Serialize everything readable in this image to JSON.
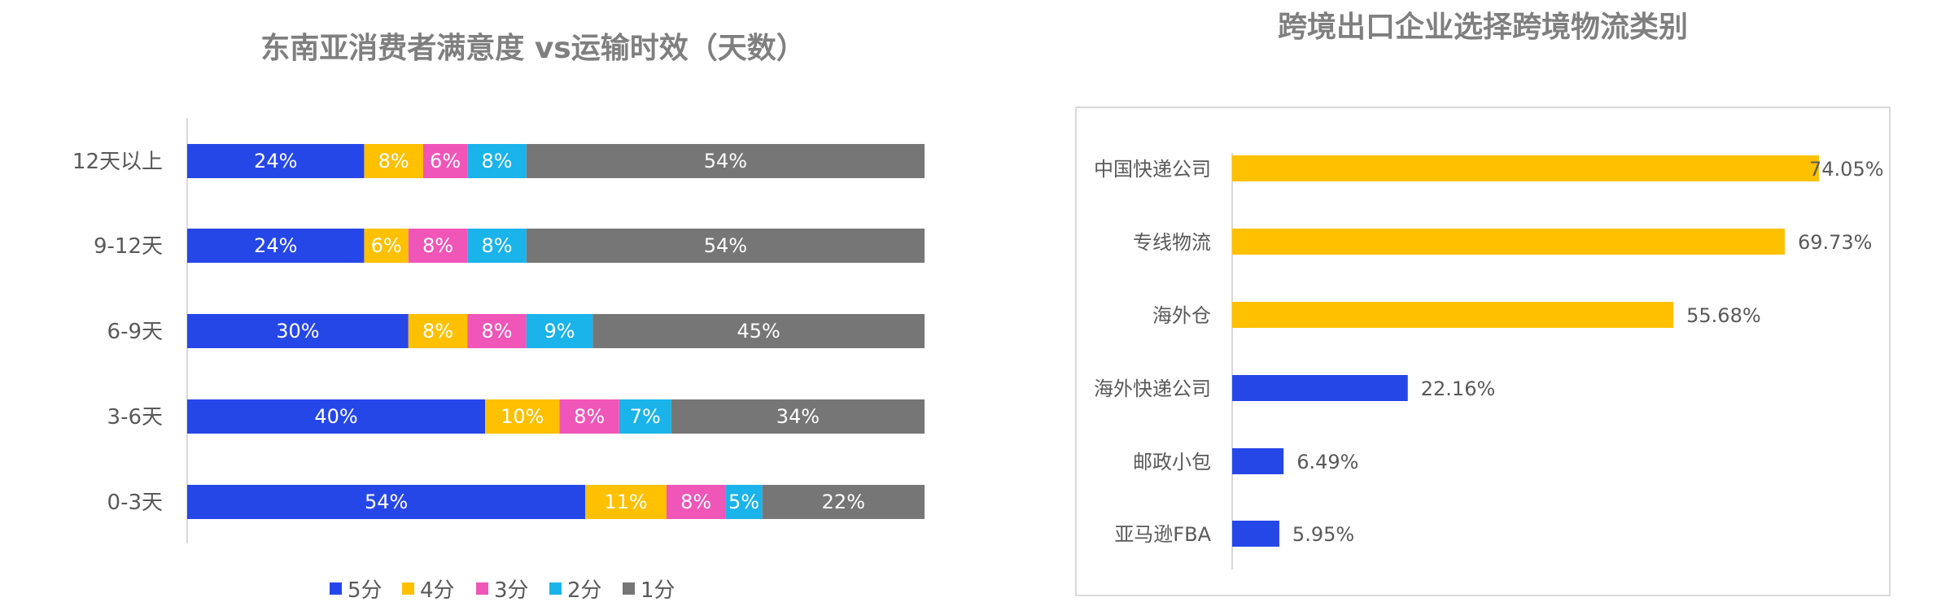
{
  "chart_data": [
    {
      "type": "bar",
      "orientation": "horizontal",
      "stacked": "percent",
      "title": "东南亚消费者满意度 vs运输时效（天数）",
      "categories": [
        "12天以上",
        "9-12天",
        "6-9天",
        "3-6天",
        "0-3天"
      ],
      "series": [
        {
          "name": "5分",
          "color": "#2647e8",
          "values": [
            24,
            24,
            30,
            40,
            54
          ],
          "labels": [
            "24%",
            "24%",
            "30%",
            "40%",
            "54%"
          ]
        },
        {
          "name": "4分",
          "color": "#ffc000",
          "values": [
            8,
            6,
            8,
            10,
            11
          ],
          "labels": [
            "8%",
            "6%",
            "8%",
            "10%",
            "11%"
          ]
        },
        {
          "name": "3分",
          "color": "#f055b8",
          "values": [
            6,
            8,
            8,
            8,
            8
          ],
          "labels": [
            "6%",
            "8%",
            "8%",
            "8%",
            "8%"
          ]
        },
        {
          "name": "2分",
          "color": "#1ab3ea",
          "values": [
            8,
            8,
            9,
            7,
            5
          ],
          "labels": [
            "8%",
            "8%",
            "9%",
            "7%",
            "5%"
          ]
        },
        {
          "name": "1分",
          "color": "#767676",
          "values": [
            54,
            54,
            45,
            34,
            22
          ],
          "labels": [
            "54%",
            "54%",
            "45%",
            "34%",
            "22%"
          ]
        }
      ],
      "legend": "bottom",
      "grid": false
    },
    {
      "type": "bar",
      "orientation": "horizontal",
      "title": "跨境出口企业选择跨境物流类别",
      "categories": [
        "中国快递公司",
        "专线物流",
        "海外仓",
        "海外快递公司",
        "邮政小包",
        "亚马逊FBA"
      ],
      "values": [
        74.05,
        69.73,
        55.68,
        22.16,
        6.49,
        5.95
      ],
      "value_labels": [
        "74.05%",
        "69.73%",
        "55.68%",
        "22.16%",
        "6.49%",
        "5.95%"
      ],
      "colors": [
        "#ffc000",
        "#ffc000",
        "#ffc000",
        "#2647e8",
        "#2647e8",
        "#2647e8"
      ],
      "xlim": [
        0,
        80
      ],
      "grid": false,
      "legend": "none"
    }
  ]
}
